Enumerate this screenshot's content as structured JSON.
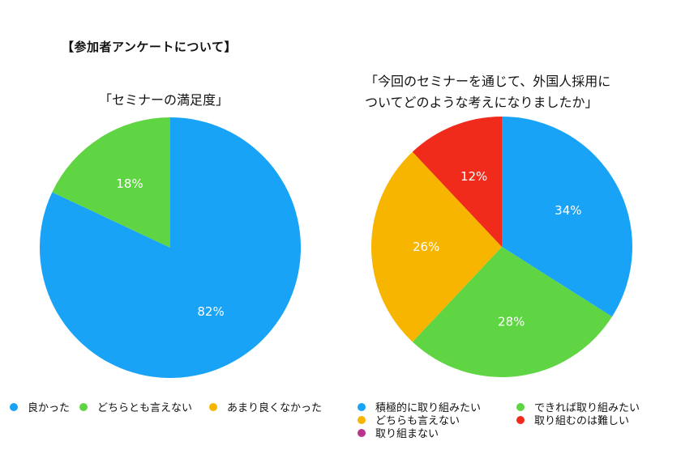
{
  "heading": "【参加者アンケートについて】",
  "chart_data": [
    {
      "type": "pie",
      "title": "「セミナーの満足度」",
      "slices": [
        {
          "label": "良かった",
          "value": 82,
          "display": "82%",
          "color": "#18a3f7"
        },
        {
          "label": "どちらとも言えない",
          "value": 18,
          "display": "18%",
          "color": "#5fd544"
        },
        {
          "label": "あまり良くなかった",
          "value": 0,
          "display": "",
          "color": "#f7b500"
        }
      ],
      "legend_position": "bottom"
    },
    {
      "type": "pie",
      "title_lines": [
        "「今回のセミナーを通じて、外国人採用に",
        "ついてどのような考えになりましたか」"
      ],
      "slices": [
        {
          "label": "積極的に取り組みたい",
          "value": 34,
          "display": "34%",
          "color": "#18a3f7"
        },
        {
          "label": "できれば取り組みたい",
          "value": 28,
          "display": "28%",
          "color": "#5fd544"
        },
        {
          "label": "どちらも言えない",
          "value": 26,
          "display": "26%",
          "color": "#f7b500"
        },
        {
          "label": "取り組むのは難しい",
          "value": 12,
          "display": "12%",
          "color": "#f02b1c"
        },
        {
          "label": "取り組まない",
          "value": 0,
          "display": "",
          "color": "#b9348c"
        }
      ],
      "legend_position": "bottom"
    }
  ]
}
